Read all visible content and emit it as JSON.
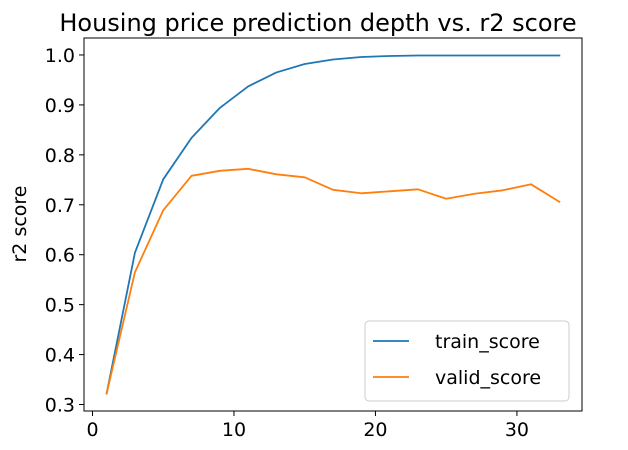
{
  "chart_data": {
    "type": "line",
    "title": "Housing price prediction depth vs. r2 score",
    "xlabel": "",
    "ylabel": "r2 score",
    "xlim": [
      -0.6,
      34.6
    ],
    "ylim": [
      0.287,
      1.034
    ],
    "x_ticks": [
      0,
      10,
      20,
      30
    ],
    "y_ticks": [
      0.3,
      0.4,
      0.5,
      0.6,
      0.7,
      0.8,
      0.9,
      1.0
    ],
    "x": [
      1,
      3,
      5,
      7,
      9,
      11,
      13,
      15,
      17,
      19,
      21,
      23,
      25,
      27,
      29,
      31,
      33
    ],
    "series": [
      {
        "name": "train_score",
        "color": "#1f77b4",
        "values": [
          0.322,
          0.604,
          0.751,
          0.834,
          0.894,
          0.937,
          0.965,
          0.982,
          0.991,
          0.996,
          0.998,
          0.999,
          0.999,
          0.999,
          0.999,
          0.999,
          0.999
        ]
      },
      {
        "name": "valid_score",
        "color": "#ff7f0e",
        "values": [
          0.322,
          0.565,
          0.689,
          0.758,
          0.768,
          0.772,
          0.761,
          0.755,
          0.73,
          0.723,
          0.727,
          0.731,
          0.712,
          0.722,
          0.729,
          0.741,
          0.706
        ]
      }
    ],
    "grid": false,
    "legend_position": "lower-right"
  }
}
